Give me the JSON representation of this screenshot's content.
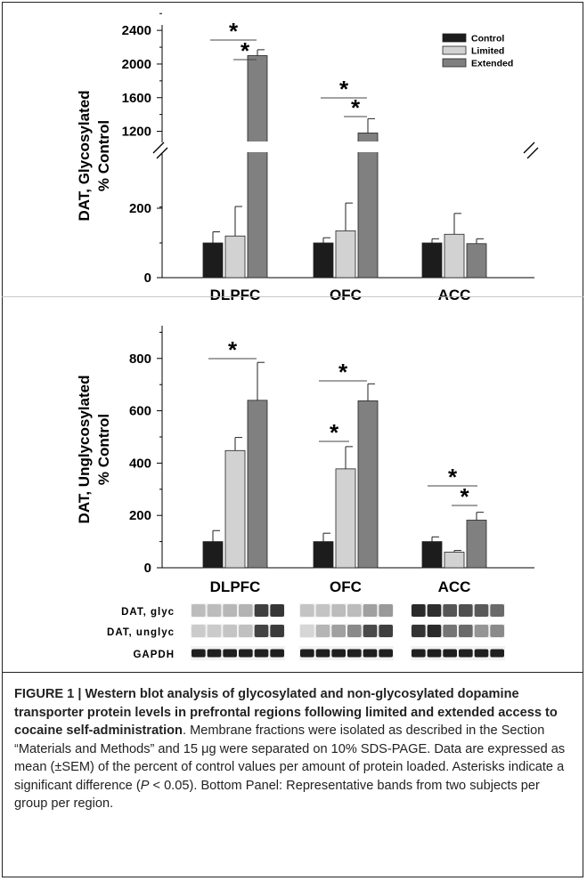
{
  "chart_data": [
    {
      "type": "bar",
      "ylabel_line1": "DAT, Glycosylated",
      "ylabel_line2": "% Control",
      "categories": [
        "DLPFC",
        "OFC",
        "ACC"
      ],
      "series": [
        {
          "name": "Control",
          "color": "#1c1c1c",
          "values": [
            100,
            100,
            100
          ],
          "err": [
            32,
            15,
            12
          ]
        },
        {
          "name": "Limited",
          "color": "#d2d2d2",
          "values": [
            120,
            135,
            125
          ],
          "err": [
            85,
            80,
            60
          ]
        },
        {
          "name": "Extended",
          "color": "#808080",
          "values": [
            2100,
            1180,
            98
          ],
          "err": [
            70,
            170,
            14
          ]
        }
      ],
      "axis": {
        "broken": true,
        "lower_range": [
          0,
          280
        ],
        "upper_range": [
          1000,
          2600
        ],
        "lower_ticks": [
          "0",
          "200"
        ],
        "upper_ticks": [
          "1200",
          "1600",
          "2000",
          "2400"
        ]
      },
      "legend": {
        "placement": "top-right"
      },
      "significance": [
        {
          "cat": 0,
          "from": 0,
          "to": 2,
          "label": "*"
        },
        {
          "cat": 0,
          "from": 1,
          "to": 2,
          "label": "*"
        },
        {
          "cat": 1,
          "from": 0,
          "to": 2,
          "label": "*"
        },
        {
          "cat": 1,
          "from": 1,
          "to": 2,
          "label": "*"
        }
      ]
    },
    {
      "type": "bar",
      "ylabel_line1": "DAT, Unglycosylated",
      "ylabel_line2": "% Control",
      "categories": [
        "DLPFC",
        "OFC",
        "ACC"
      ],
      "series": [
        {
          "name": "Control",
          "color": "#1c1c1c",
          "values": [
            100,
            100,
            100
          ],
          "err": [
            42,
            32,
            18
          ]
        },
        {
          "name": "Limited",
          "color": "#d2d2d2",
          "values": [
            448,
            378,
            60
          ],
          "err": [
            50,
            85,
            6
          ]
        },
        {
          "name": "Extended",
          "color": "#808080",
          "values": [
            640,
            638,
            182
          ],
          "err": [
            145,
            65,
            30
          ]
        }
      ],
      "axis": {
        "ylim": [
          0,
          920
        ],
        "ticks": [
          "0",
          "200",
          "400",
          "600",
          "800"
        ]
      },
      "significance": [
        {
          "cat": 0,
          "from": 0,
          "to": 2,
          "label": "*"
        },
        {
          "cat": 1,
          "from": 0,
          "to": 2,
          "label": "*"
        },
        {
          "cat": 1,
          "from": 0,
          "to": 1,
          "label": "*"
        },
        {
          "cat": 2,
          "from": 0,
          "to": 2,
          "label": "*"
        },
        {
          "cat": 2,
          "from": 1,
          "to": 2,
          "label": "*"
        }
      ]
    }
  ],
  "blots": {
    "rows": [
      {
        "label": "DAT, glyc",
        "intensities": [
          [
            0.22,
            0.22,
            0.24,
            0.26,
            0.8,
            0.84
          ],
          [
            0.18,
            0.18,
            0.22,
            0.22,
            0.35,
            0.38
          ],
          [
            0.9,
            0.88,
            0.7,
            0.72,
            0.68,
            0.6
          ]
        ]
      },
      {
        "label": "DAT, unglyc",
        "intensities": [
          [
            0.15,
            0.15,
            0.18,
            0.2,
            0.78,
            0.82
          ],
          [
            0.1,
            0.25,
            0.35,
            0.45,
            0.75,
            0.8
          ],
          [
            0.85,
            0.9,
            0.55,
            0.6,
            0.4,
            0.45
          ]
        ]
      },
      {
        "label": "GAPDH",
        "intensities": [
          [
            0.95,
            0.95,
            0.95,
            0.95,
            0.95,
            0.95
          ],
          [
            0.95,
            0.95,
            0.95,
            0.95,
            0.95,
            0.95
          ],
          [
            0.95,
            0.95,
            0.95,
            0.95,
            0.95,
            0.95
          ]
        ]
      }
    ]
  },
  "caption": {
    "title": "FIGURE 1 | Western blot analysis of glycosylated and non-glycosylated dopamine transporter protein levels in prefrontal regions following limited and extended access to cocaine self-administration",
    "body_1": ". Membrane fractions were isolated as described in the Section “Materials and Methods” and 15 μg were separated on 10% SDS-PAGE. Data are expressed as mean (±SEM) of the percent of control values per amount of protein loaded. Asterisks indicate a significant difference (",
    "p_symbol": "P",
    "body_2": " < 0.05). Bottom Panel: Representative bands from two subjects per group per region."
  }
}
